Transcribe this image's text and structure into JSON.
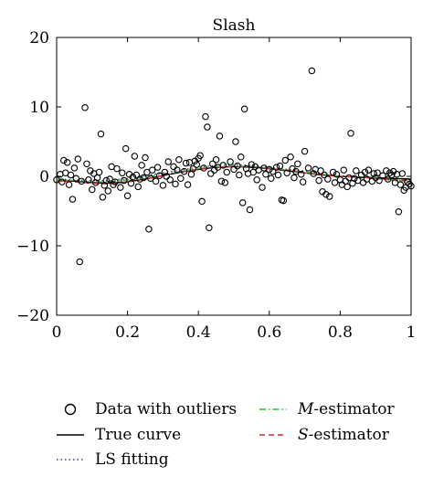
{
  "chart_data": {
    "type": "scatter",
    "title": "Slash",
    "xlabel": "",
    "ylabel": "",
    "xlim": [
      0,
      1
    ],
    "ylim": [
      -20,
      20
    ],
    "xticks": [
      "0",
      "0.2",
      "0.4",
      "0.6",
      "0.8",
      "1"
    ],
    "yticks": [
      "20",
      "10",
      "0",
      "−10",
      "−20"
    ],
    "grid": false,
    "legend_position": "bottom",
    "legend": [
      {
        "label_prefix": "",
        "label_italic": "",
        "label_suffix": "Data with outliers",
        "style": "marker-circle",
        "color": "#000000"
      },
      {
        "label_prefix": "",
        "label_italic": "",
        "label_suffix": "True curve",
        "style": "solid",
        "color": "#000000"
      },
      {
        "label_prefix": "",
        "label_italic": "",
        "label_suffix": "LS fitting",
        "style": "dotted",
        "color": "#3a3aa0"
      },
      {
        "label_prefix": "",
        "label_italic": "M",
        "label_suffix": "-estimator",
        "style": "dashdot",
        "color": "#2bbd2b"
      },
      {
        "label_prefix": "",
        "label_italic": "S",
        "label_suffix": "-estimator",
        "style": "dashed",
        "color": "#d42a2a"
      }
    ],
    "points": [
      {
        "x": 0.0,
        "y": -0.5
      },
      {
        "x": 0.01,
        "y": 0.3
      },
      {
        "x": 0.015,
        "y": -0.8
      },
      {
        "x": 0.02,
        "y": 2.3
      },
      {
        "x": 0.025,
        "y": 0.5
      },
      {
        "x": 0.03,
        "y": 2.0
      },
      {
        "x": 0.035,
        "y": -1.2
      },
      {
        "x": 0.04,
        "y": 0.2
      },
      {
        "x": 0.045,
        "y": -3.3
      },
      {
        "x": 0.05,
        "y": 1.2
      },
      {
        "x": 0.055,
        "y": -0.3
      },
      {
        "x": 0.06,
        "y": 2.5
      },
      {
        "x": 0.065,
        "y": -12.3
      },
      {
        "x": 0.07,
        "y": -0.7
      },
      {
        "x": 0.08,
        "y": 9.9
      },
      {
        "x": 0.085,
        "y": 1.8
      },
      {
        "x": 0.09,
        "y": -0.5
      },
      {
        "x": 0.095,
        "y": 0.8
      },
      {
        "x": 0.1,
        "y": -1.9
      },
      {
        "x": 0.105,
        "y": 0.4
      },
      {
        "x": 0.11,
        "y": -0.9
      },
      {
        "x": 0.115,
        "y": -0.2
      },
      {
        "x": 0.12,
        "y": 0.6
      },
      {
        "x": 0.125,
        "y": 6.1
      },
      {
        "x": 0.13,
        "y": -3.0
      },
      {
        "x": 0.135,
        "y": -1.3
      },
      {
        "x": 0.14,
        "y": -0.6
      },
      {
        "x": 0.145,
        "y": -2.1
      },
      {
        "x": 0.15,
        "y": -0.4
      },
      {
        "x": 0.155,
        "y": 1.4
      },
      {
        "x": 0.16,
        "y": -1.2
      },
      {
        "x": 0.165,
        "y": -0.8
      },
      {
        "x": 0.17,
        "y": 1.1
      },
      {
        "x": 0.18,
        "y": -1.6
      },
      {
        "x": 0.185,
        "y": 0.5
      },
      {
        "x": 0.19,
        "y": -0.6
      },
      {
        "x": 0.195,
        "y": 4.0
      },
      {
        "x": 0.2,
        "y": -2.8
      },
      {
        "x": 0.205,
        "y": 0.3
      },
      {
        "x": 0.21,
        "y": -1.0
      },
      {
        "x": 0.215,
        "y": -0.1
      },
      {
        "x": 0.22,
        "y": 2.9
      },
      {
        "x": 0.225,
        "y": 0.2
      },
      {
        "x": 0.23,
        "y": -1.5
      },
      {
        "x": 0.235,
        "y": -0.4
      },
      {
        "x": 0.24,
        "y": 1.6
      },
      {
        "x": 0.245,
        "y": -0.2
      },
      {
        "x": 0.25,
        "y": 2.7
      },
      {
        "x": 0.255,
        "y": 0.6
      },
      {
        "x": 0.26,
        "y": -7.6
      },
      {
        "x": 0.265,
        "y": -0.3
      },
      {
        "x": 0.27,
        "y": 0.9
      },
      {
        "x": 0.28,
        "y": -0.7
      },
      {
        "x": 0.285,
        "y": 1.3
      },
      {
        "x": 0.29,
        "y": 0.1
      },
      {
        "x": 0.3,
        "y": -1.3
      },
      {
        "x": 0.305,
        "y": 0.6
      },
      {
        "x": 0.31,
        "y": 0.0
      },
      {
        "x": 0.315,
        "y": 2.1
      },
      {
        "x": 0.32,
        "y": -0.5
      },
      {
        "x": 0.33,
        "y": 1.4
      },
      {
        "x": 0.335,
        "y": -1.1
      },
      {
        "x": 0.34,
        "y": 0.9
      },
      {
        "x": 0.345,
        "y": 2.4
      },
      {
        "x": 0.35,
        "y": -0.3
      },
      {
        "x": 0.36,
        "y": 0.7
      },
      {
        "x": 0.365,
        "y": 1.9
      },
      {
        "x": 0.37,
        "y": -1.2
      },
      {
        "x": 0.375,
        "y": 2.0
      },
      {
        "x": 0.38,
        "y": 0.3
      },
      {
        "x": 0.385,
        "y": 1.1
      },
      {
        "x": 0.39,
        "y": 2.2
      },
      {
        "x": 0.395,
        "y": 1.7
      },
      {
        "x": 0.4,
        "y": 2.6
      },
      {
        "x": 0.405,
        "y": 3.0
      },
      {
        "x": 0.41,
        "y": -3.6
      },
      {
        "x": 0.415,
        "y": 1.2
      },
      {
        "x": 0.42,
        "y": 8.6
      },
      {
        "x": 0.425,
        "y": 7.1
      },
      {
        "x": 0.43,
        "y": -7.4
      },
      {
        "x": 0.435,
        "y": 0.4
      },
      {
        "x": 0.44,
        "y": 1.8
      },
      {
        "x": 0.445,
        "y": 0.9
      },
      {
        "x": 0.45,
        "y": 2.4
      },
      {
        "x": 0.455,
        "y": 1.3
      },
      {
        "x": 0.46,
        "y": 5.8
      },
      {
        "x": 0.465,
        "y": -0.7
      },
      {
        "x": 0.47,
        "y": 1.6
      },
      {
        "x": 0.475,
        "y": -0.9
      },
      {
        "x": 0.48,
        "y": 0.6
      },
      {
        "x": 0.49,
        "y": 2.1
      },
      {
        "x": 0.5,
        "y": 1.0
      },
      {
        "x": 0.505,
        "y": 5.0
      },
      {
        "x": 0.51,
        "y": 1.5
      },
      {
        "x": 0.515,
        "y": 0.2
      },
      {
        "x": 0.52,
        "y": 2.8
      },
      {
        "x": 0.525,
        "y": -3.8
      },
      {
        "x": 0.53,
        "y": 9.7
      },
      {
        "x": 0.535,
        "y": 1.1
      },
      {
        "x": 0.54,
        "y": 0.4
      },
      {
        "x": 0.545,
        "y": -4.8
      },
      {
        "x": 0.55,
        "y": 1.7
      },
      {
        "x": 0.555,
        "y": 0.6
      },
      {
        "x": 0.56,
        "y": 1.4
      },
      {
        "x": 0.565,
        "y": -0.5
      },
      {
        "x": 0.57,
        "y": 0.9
      },
      {
        "x": 0.58,
        "y": -1.6
      },
      {
        "x": 0.585,
        "y": 1.2
      },
      {
        "x": 0.59,
        "y": 0.3
      },
      {
        "x": 0.6,
        "y": 1.0
      },
      {
        "x": 0.605,
        "y": -0.3
      },
      {
        "x": 0.61,
        "y": 0.7
      },
      {
        "x": 0.62,
        "y": 1.3
      },
      {
        "x": 0.625,
        "y": 0.2
      },
      {
        "x": 0.63,
        "y": 1.5
      },
      {
        "x": 0.635,
        "y": -3.4
      },
      {
        "x": 0.64,
        "y": -3.5
      },
      {
        "x": 0.645,
        "y": 2.3
      },
      {
        "x": 0.65,
        "y": 0.5
      },
      {
        "x": 0.66,
        "y": 2.8
      },
      {
        "x": 0.665,
        "y": 1.1
      },
      {
        "x": 0.67,
        "y": -0.2
      },
      {
        "x": 0.675,
        "y": 0.7
      },
      {
        "x": 0.68,
        "y": 1.8
      },
      {
        "x": 0.69,
        "y": 0.3
      },
      {
        "x": 0.695,
        "y": -0.8
      },
      {
        "x": 0.7,
        "y": 3.6
      },
      {
        "x": 0.71,
        "y": 1.2
      },
      {
        "x": 0.72,
        "y": 15.2
      },
      {
        "x": 0.725,
        "y": 0.4
      },
      {
        "x": 0.73,
        "y": 1.0
      },
      {
        "x": 0.74,
        "y": -0.6
      },
      {
        "x": 0.745,
        "y": 0.8
      },
      {
        "x": 0.75,
        "y": -2.2
      },
      {
        "x": 0.755,
        "y": 0.2
      },
      {
        "x": 0.76,
        "y": -2.6
      },
      {
        "x": 0.765,
        "y": -0.4
      },
      {
        "x": 0.77,
        "y": -2.9
      },
      {
        "x": 0.78,
        "y": 0.6
      },
      {
        "x": 0.785,
        "y": -0.9
      },
      {
        "x": 0.79,
        "y": 0.3
      },
      {
        "x": 0.8,
        "y": -0.5
      },
      {
        "x": 0.805,
        "y": -1.2
      },
      {
        "x": 0.81,
        "y": 0.9
      },
      {
        "x": 0.815,
        "y": -0.7
      },
      {
        "x": 0.82,
        "y": -1.5
      },
      {
        "x": 0.825,
        "y": -0.2
      },
      {
        "x": 0.83,
        "y": 6.2
      },
      {
        "x": 0.835,
        "y": -1.0
      },
      {
        "x": 0.84,
        "y": -0.3
      },
      {
        "x": 0.845,
        "y": 0.8
      },
      {
        "x": 0.85,
        "y": -0.6
      },
      {
        "x": 0.86,
        "y": 0.2
      },
      {
        "x": 0.865,
        "y": -0.9
      },
      {
        "x": 0.87,
        "y": 0.6
      },
      {
        "x": 0.875,
        "y": -0.4
      },
      {
        "x": 0.88,
        "y": 0.9
      },
      {
        "x": 0.89,
        "y": -0.7
      },
      {
        "x": 0.895,
        "y": 0.4
      },
      {
        "x": 0.9,
        "y": -0.2
      },
      {
        "x": 0.905,
        "y": 0.5
      },
      {
        "x": 0.91,
        "y": -0.6
      },
      {
        "x": 0.92,
        "y": 0.1
      },
      {
        "x": 0.93,
        "y": 0.8
      },
      {
        "x": 0.935,
        "y": -0.4
      },
      {
        "x": 0.94,
        "y": 0.5
      },
      {
        "x": 0.945,
        "y": 0.2
      },
      {
        "x": 0.95,
        "y": 0.7
      },
      {
        "x": 0.955,
        "y": -0.9
      },
      {
        "x": 0.96,
        "y": 0.3
      },
      {
        "x": 0.965,
        "y": -5.1
      },
      {
        "x": 0.97,
        "y": -1.2
      },
      {
        "x": 0.975,
        "y": 0.4
      },
      {
        "x": 0.98,
        "y": -2.0
      },
      {
        "x": 0.985,
        "y": -1.6
      },
      {
        "x": 0.99,
        "y": -0.8
      },
      {
        "x": 0.995,
        "y": -1.1
      },
      {
        "x": 1.0,
        "y": -1.4
      }
    ],
    "curves": [
      {
        "legend_index": 1,
        "x": [
          0,
          0.05,
          0.1,
          0.15,
          0.2,
          0.25,
          0.3,
          0.35,
          0.4,
          0.45,
          0.5,
          0.55,
          0.6,
          0.65,
          0.7,
          0.75,
          0.8,
          0.85,
          0.9,
          0.95,
          1.0
        ],
        "y": [
          -0.6,
          -0.7,
          -0.9,
          -1.0,
          -0.8,
          -0.4,
          0.1,
          0.6,
          1.0,
          1.3,
          1.4,
          1.3,
          1.1,
          0.8,
          0.5,
          0.2,
          0.0,
          -0.1,
          -0.2,
          -0.3,
          -0.4
        ]
      },
      {
        "legend_index": 2,
        "x": [
          0,
          0.05,
          0.1,
          0.15,
          0.2,
          0.25,
          0.3,
          0.35,
          0.4,
          0.45,
          0.5,
          0.55,
          0.6,
          0.65,
          0.7,
          0.75,
          0.8,
          0.85,
          0.9,
          0.95,
          1.0
        ],
        "y": [
          -0.4,
          -0.5,
          -0.6,
          -0.6,
          -0.3,
          0.1,
          0.5,
          0.9,
          1.3,
          1.6,
          1.7,
          1.6,
          1.3,
          1.0,
          0.8,
          0.4,
          0.1,
          -0.1,
          -0.3,
          -0.6,
          -1.0
        ]
      },
      {
        "legend_index": 3,
        "x": [
          0,
          0.05,
          0.1,
          0.15,
          0.2,
          0.25,
          0.3,
          0.35,
          0.4,
          0.45,
          0.5,
          0.55,
          0.6,
          0.65,
          0.7,
          0.75,
          0.8,
          0.85,
          0.9,
          0.95,
          1.0
        ],
        "y": [
          -0.5,
          -0.6,
          -0.8,
          -0.8,
          -0.5,
          -0.1,
          0.3,
          0.7,
          1.1,
          1.4,
          1.5,
          1.4,
          1.2,
          0.9,
          0.6,
          0.3,
          0.0,
          -0.1,
          -0.2,
          -0.5,
          -0.8
        ]
      },
      {
        "legend_index": 4,
        "x": [
          0,
          0.05,
          0.1,
          0.15,
          0.2,
          0.25,
          0.3,
          0.35,
          0.4,
          0.45,
          0.5,
          0.55,
          0.6,
          0.65,
          0.7,
          0.75,
          0.8,
          0.85,
          0.9,
          0.95,
          1.0
        ],
        "y": [
          -0.7,
          -0.8,
          -1.0,
          -1.1,
          -0.8,
          -0.4,
          0.1,
          0.6,
          1.0,
          1.3,
          1.4,
          1.3,
          1.1,
          0.8,
          0.5,
          0.2,
          0.0,
          -0.1,
          -0.3,
          -0.5,
          -0.6
        ]
      }
    ]
  }
}
